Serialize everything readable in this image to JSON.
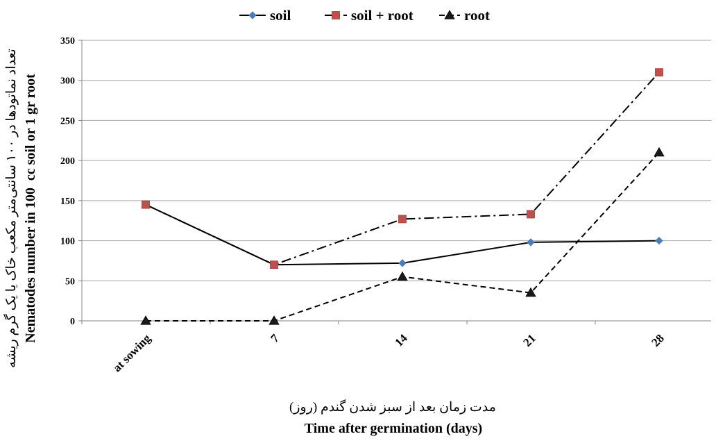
{
  "chart_data": {
    "type": "line",
    "categories": [
      "at sowing",
      "7",
      "14",
      "21",
      "28"
    ],
    "series": [
      {
        "name": "soil",
        "values": [
          145,
          70,
          72,
          98,
          100
        ],
        "color": "#4a7ebb",
        "marker": "diamond",
        "line_style": "solid"
      },
      {
        "name": "soil + root",
        "values": [
          145,
          70,
          127,
          133,
          310
        ],
        "color": "#c0504d",
        "marker": "square",
        "line_style": "dash-dot"
      },
      {
        "name": "root",
        "values": [
          0,
          0,
          55,
          35,
          210
        ],
        "color": "#1a1a1a",
        "marker": "triangle",
        "line_style": "dashed"
      }
    ],
    "yticks": [
      0,
      50,
      100,
      150,
      200,
      250,
      300,
      350
    ],
    "ylim": [
      0,
      350
    ],
    "ylabel": "Nematodes number in 100  cc soil or 1 gr root",
    "ylabel_fa": "تعداد نماتودها در ۱۰۰ سانتی‌متر مکعب خاک یا یک گرم ریشه",
    "xlabel": "Time after germination (days)",
    "xlabel_fa": "مدت زمان بعد از سبز شدن گندم (روز)",
    "grid": "horizontal",
    "legend_position": "top-center"
  }
}
